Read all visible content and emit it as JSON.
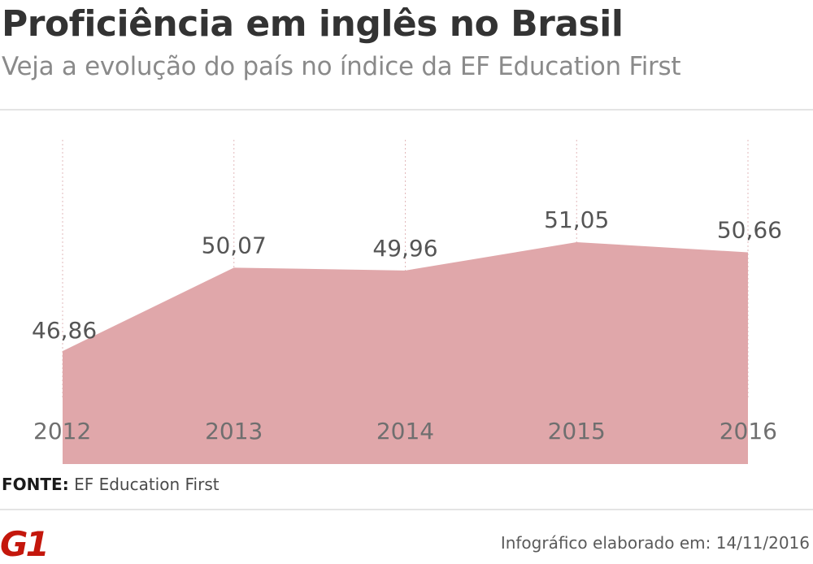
{
  "header": {
    "title": "Proficiência em inglês no Brasil",
    "subtitle": "Veja a evolução do país no índice da EF Education First"
  },
  "footer": {
    "source_label": "FONTE:",
    "source_value": "EF Education First",
    "credit": "Infográfico elaborado em: 14/11/2016",
    "logo_text": "G1"
  },
  "colors": {
    "area_fill": "#e0a7aa",
    "brand_red": "#c4170c",
    "value_text": "#555555",
    "year_text": "#6f6f6f"
  },
  "chart_data": {
    "type": "area",
    "x": [
      "2012",
      "2013",
      "2014",
      "2015",
      "2016"
    ],
    "values": [
      46.86,
      50.07,
      49.96,
      51.05,
      50.66
    ],
    "value_labels": [
      "46,86",
      "50,07",
      "49,96",
      "51,05",
      "50,66"
    ],
    "title": "Proficiência em inglês no Brasil",
    "xlabel": "",
    "ylabel": "",
    "grid": "vertical dotted",
    "legend": "none"
  }
}
